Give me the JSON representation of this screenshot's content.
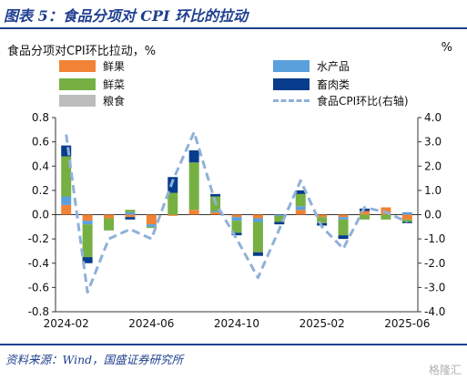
{
  "figure_title": "图表 5：食品分项对 CPI 环比的拉动",
  "source": "资料来源：Wind，国盛证券研究所",
  "watermark": "格隆汇",
  "colors": {
    "fruit": "#f08336",
    "veg": "#76b043",
    "grain": "#bdbdbd",
    "aquatic": "#5aa0dc",
    "meat": "#083c8c",
    "cpi": "#8fb1d9",
    "accent": "#1f3f8f"
  },
  "chart_data": {
    "type": "bar",
    "title": "食品分项对CPI环比拉动，%",
    "ylabel_right": "%",
    "categories": [
      "2024-02",
      "2024-03",
      "2024-04",
      "2024-05",
      "2024-06",
      "2024-07",
      "2024-08",
      "2024-09",
      "2024-10",
      "2024-11",
      "2024-12",
      "2025-01",
      "2025-02",
      "2025-03",
      "2025-04",
      "2025-05",
      "2025-06"
    ],
    "x_tick_labels": [
      "2024-02",
      "2024-06",
      "2024-10",
      "2025-02",
      "2025-06"
    ],
    "ylim": [
      -0.8,
      0.8
    ],
    "ylim_right": [
      -4.0,
      4.0
    ],
    "yticks": [
      -0.8,
      -0.6,
      -0.4,
      -0.2,
      0.0,
      0.2,
      0.4,
      0.6,
      0.8
    ],
    "yticks_right": [
      -4.0,
      -3.0,
      -2.0,
      -1.0,
      0.0,
      1.0,
      2.0,
      3.0,
      4.0
    ],
    "series": [
      {
        "name": "鲜果",
        "key": "fruit",
        "values": [
          0.08,
          -0.05,
          -0.03,
          -0.02,
          -0.08,
          -0.01,
          0.04,
          0.02,
          -0.02,
          -0.03,
          0.0,
          0.04,
          -0.02,
          -0.02,
          0.03,
          0.06,
          -0.04
        ]
      },
      {
        "name": "水产品",
        "key": "aquatic",
        "values": [
          0.07,
          -0.03,
          0.0,
          0.02,
          -0.02,
          0.0,
          0.0,
          0.01,
          -0.03,
          -0.03,
          -0.01,
          0.03,
          0.0,
          -0.02,
          0.0,
          0.0,
          0.02
        ]
      },
      {
        "name": "鲜菜",
        "key": "veg",
        "values": [
          0.33,
          -0.27,
          -0.1,
          0.02,
          -0.01,
          0.18,
          0.39,
          0.12,
          -0.1,
          -0.25,
          -0.05,
          0.1,
          -0.05,
          -0.13,
          -0.04,
          -0.04,
          -0.02
        ]
      },
      {
        "name": "畜肉类",
        "key": "meat",
        "values": [
          0.09,
          -0.05,
          0.0,
          -0.02,
          0.0,
          0.13,
          0.1,
          0.02,
          -0.02,
          -0.03,
          -0.02,
          0.03,
          -0.02,
          -0.03,
          0.02,
          0.0,
          -0.01
        ]
      },
      {
        "name": "粮食",
        "key": "grain",
        "values": [
          0.0,
          0.0,
          0.0,
          0.0,
          0.0,
          0.0,
          0.0,
          0.0,
          0.0,
          0.0,
          0.0,
          0.0,
          0.0,
          0.0,
          0.0,
          0.0,
          0.0
        ]
      }
    ],
    "line": {
      "name": "食品CPI环比(右轴)",
      "key": "cpi",
      "values": [
        3.3,
        -3.2,
        -1.0,
        -0.6,
        -1.0,
        1.4,
        3.4,
        0.5,
        -1.0,
        -2.6,
        -0.6,
        1.4,
        -0.5,
        -1.4,
        0.3,
        0.1,
        -0.3
      ]
    },
    "legend": [
      {
        "label": "鲜果",
        "key": "fruit",
        "kind": "bar"
      },
      {
        "label": "水产品",
        "key": "aquatic",
        "kind": "bar"
      },
      {
        "label": "鲜菜",
        "key": "veg",
        "kind": "bar"
      },
      {
        "label": "畜肉类",
        "key": "meat",
        "kind": "bar"
      },
      {
        "label": "粮食",
        "key": "grain",
        "kind": "bar"
      },
      {
        "label": "食品CPI环比(右轴)",
        "key": "cpi",
        "kind": "line"
      }
    ],
    "unit_right": "%"
  }
}
